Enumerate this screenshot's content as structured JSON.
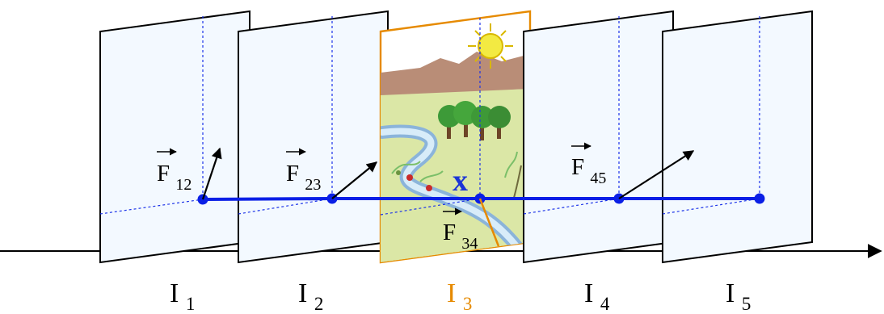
{
  "colors": {
    "axis": "#000000",
    "frame_stroke": "#000000",
    "frame_fill": "#ffffff",
    "frame_tint": "#f3f9ff",
    "selected_frame": "#e68a00",
    "trajectory": "#0a1fe6",
    "guide_lines": "#1d34e8",
    "flow_vector": "#000000",
    "label_text": "#000000",
    "selected_label_text": "#e68a00",
    "point_label_text": "#1b34d6"
  },
  "frames": [
    {
      "id": "I1",
      "base": "I",
      "sub": "1",
      "selected": false
    },
    {
      "id": "I2",
      "base": "I",
      "sub": "2",
      "selected": false
    },
    {
      "id": "I3",
      "base": "I",
      "sub": "3",
      "selected": true
    },
    {
      "id": "I4",
      "base": "I",
      "sub": "4",
      "selected": false
    },
    {
      "id": "I5",
      "base": "I",
      "sub": "5",
      "selected": false
    }
  ],
  "flows": [
    {
      "id": "F12",
      "base": "F",
      "sub": "12"
    },
    {
      "id": "F23",
      "base": "F",
      "sub": "23"
    },
    {
      "id": "F34",
      "base": "F",
      "sub": "34"
    },
    {
      "id": "F45",
      "base": "F",
      "sub": "45"
    }
  ],
  "point_label": "x",
  "illustration_icon": "landscape-drawing-icon"
}
